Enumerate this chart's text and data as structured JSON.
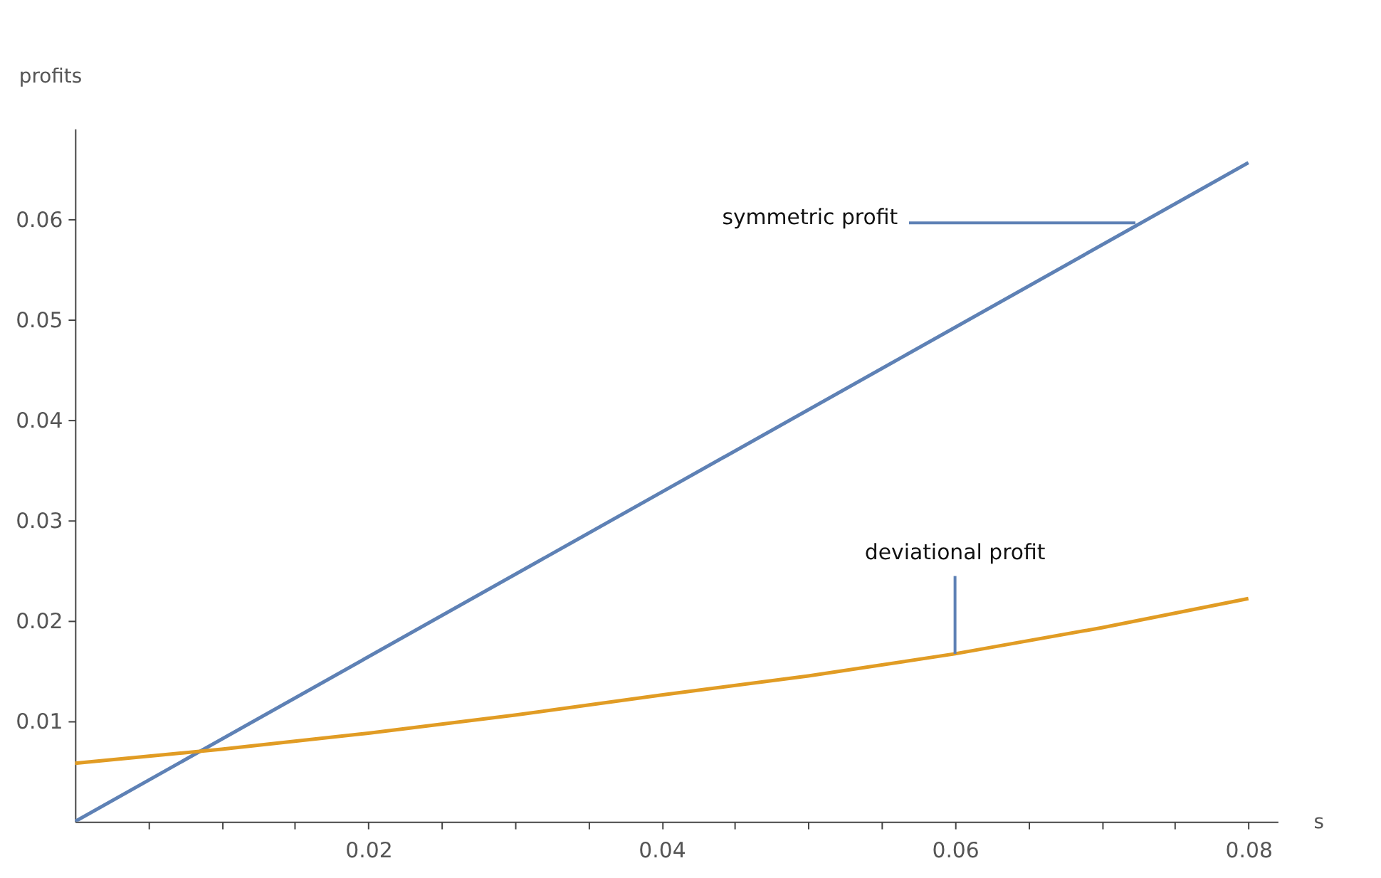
{
  "chart_data": {
    "type": "line",
    "xlabel": "s",
    "ylabel": "profits",
    "xlim": [
      0,
      0.082
    ],
    "ylim": [
      0,
      0.069
    ],
    "xticks": [
      {
        "value": 0.005,
        "label": null
      },
      {
        "value": 0.01,
        "label": null
      },
      {
        "value": 0.015,
        "label": null
      },
      0.02,
      {
        "value": 0.025,
        "label": null
      },
      {
        "value": 0.03,
        "label": null
      },
      {
        "value": 0.035,
        "label": null
      },
      0.04,
      {
        "value": 0.045,
        "label": null
      },
      {
        "value": 0.05,
        "label": null
      },
      {
        "value": 0.055,
        "label": null
      },
      0.06,
      {
        "value": 0.065,
        "label": null
      },
      {
        "value": 0.07,
        "label": null
      },
      {
        "value": 0.075,
        "label": null
      },
      0.08
    ],
    "yticks": [
      0.01,
      0.02,
      0.03,
      0.04,
      0.05,
      0.06
    ],
    "grid": false,
    "marker": "none",
    "line_style": "solid",
    "series": [
      {
        "color": "#5e81b5",
        "x": [
          0,
          0.04,
          0.08
        ],
        "values": [
          0,
          0.0328,
          0.0656
        ]
      },
      {
        "color": "#e19c24",
        "x": [
          0,
          0.01,
          0.02,
          0.03,
          0.04,
          0.05,
          0.06,
          0.07,
          0.08
        ],
        "values": [
          0.0058,
          0.0072,
          0.0088,
          0.0106,
          0.0126,
          0.0145,
          0.0167,
          0.0193,
          0.0222
        ]
      }
    ],
    "annotations": [
      {
        "text": "symmetric profit",
        "x": 0.0723,
        "y": 0.0596
      },
      {
        "text": "deviational profit",
        "x": 0.06,
        "y": 0.0167
      }
    ]
  }
}
